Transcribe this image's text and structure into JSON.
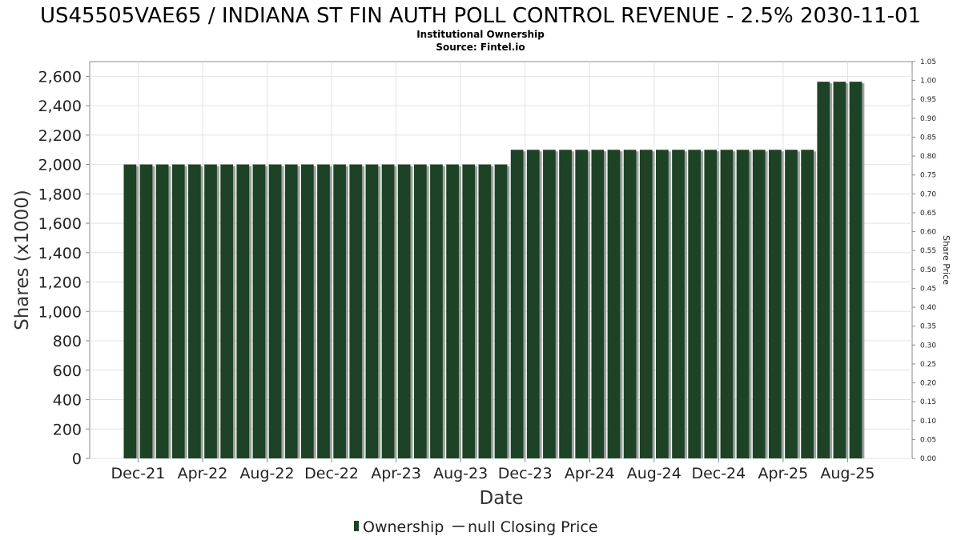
{
  "chart_data": {
    "type": "bar",
    "title": "US45505VAE65 / INDIANA ST FIN AUTH POLL CONTROL REVENUE - 2.5% 2030-11-01",
    "subtitle_line1": "Institutional Ownership",
    "subtitle_line2": "Source: Fintel.io",
    "xlabel": "Date",
    "ylabel": "Shares (x1000)",
    "y2label": "Share Price",
    "ylim": [
      0,
      2700
    ],
    "y2lim": [
      0,
      1.05
    ],
    "yticks": [
      0,
      200,
      400,
      600,
      800,
      1000,
      1200,
      1400,
      1600,
      1800,
      2000,
      2200,
      2400,
      2600
    ],
    "ytick_labels": [
      "0",
      "200",
      "400",
      "600",
      "800",
      "1,000",
      "1,200",
      "1,400",
      "1,600",
      "1,800",
      "2,000",
      "2,200",
      "2,400",
      "2,600"
    ],
    "y2tick_labels": [
      "0.00",
      "0.05",
      "0.10",
      "0.15",
      "0.20",
      "0.25",
      "0.30",
      "0.35",
      "0.40",
      "0.45",
      "0.50",
      "0.55",
      "0.60",
      "0.65",
      "0.70",
      "0.75",
      "0.80",
      "0.85",
      "0.90",
      "0.95",
      "1.00",
      "1.05"
    ],
    "xtick_labels": [
      "Dec-21",
      "Apr-22",
      "Aug-22",
      "Dec-22",
      "Apr-23",
      "Aug-23",
      "Dec-23",
      "Apr-24",
      "Aug-24",
      "Dec-24",
      "Apr-25",
      "Aug-25"
    ],
    "xtick_positions": [
      0.5,
      4.5,
      8.5,
      12.5,
      16.5,
      20.5,
      24.5,
      28.5,
      32.5,
      36.5,
      40.5,
      44.5
    ],
    "x_domain": [
      -2.5,
      48.5
    ],
    "grid": true,
    "legend_position": "bottom-center",
    "series": [
      {
        "name": "Ownership",
        "color": "#1e4225",
        "values": [
          2000,
          2000,
          2000,
          2000,
          2000,
          2000,
          2000,
          2000,
          2000,
          2000,
          2000,
          2000,
          2000,
          2000,
          2000,
          2000,
          2000,
          2000,
          2000,
          2000,
          2000,
          2000,
          2000,
          2000,
          2100,
          2100,
          2100,
          2100,
          2100,
          2100,
          2100,
          2100,
          2100,
          2100,
          2100,
          2100,
          2100,
          2100,
          2100,
          2100,
          2100,
          2100,
          2100,
          2563,
          2563,
          2563
        ]
      },
      {
        "name": "null Closing Price",
        "color": "#555555",
        "values": []
      }
    ]
  }
}
